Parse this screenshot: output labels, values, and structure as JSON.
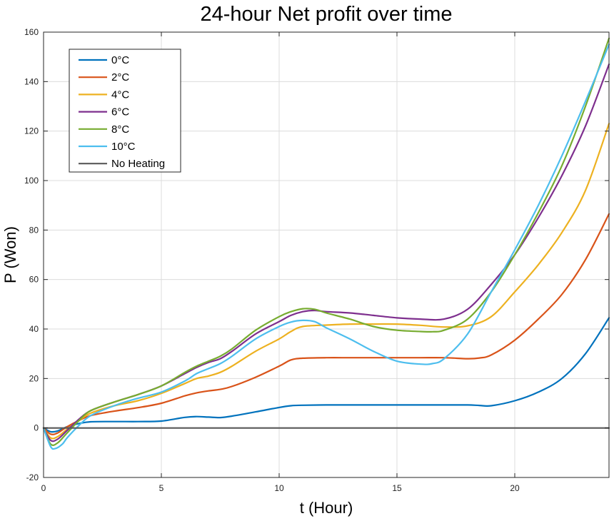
{
  "chart_data": {
    "type": "line",
    "title": "24-hour Net profit over time",
    "xlabel": "t (Hour)",
    "ylabel": "P (Won)",
    "xlim": [
      0,
      24
    ],
    "ylim": [
      -20,
      160
    ],
    "xticks": [
      0,
      5,
      10,
      15,
      20
    ],
    "yticks": [
      -20,
      0,
      20,
      40,
      60,
      80,
      100,
      120,
      140,
      160
    ],
    "grid": true,
    "legend_position": "top-left",
    "series": [
      {
        "name": "0°C",
        "color": "#0072BD",
        "x": [
          0,
          0.3,
          0.6,
          1,
          1.5,
          2,
          3,
          4,
          5,
          6,
          6.5,
          7,
          7.5,
          8,
          9,
          10,
          10.5,
          11,
          12,
          13,
          14,
          15,
          16,
          17,
          18,
          18.5,
          19,
          20,
          21,
          22,
          23,
          24
        ],
        "y": [
          0,
          -1.5,
          -1.2,
          0.5,
          1.8,
          2.5,
          2.6,
          2.6,
          2.8,
          4.3,
          4.6,
          4.4,
          4.2,
          4.8,
          6.5,
          8.3,
          9.0,
          9.2,
          9.3,
          9.3,
          9.3,
          9.3,
          9.3,
          9.3,
          9.3,
          9.1,
          9.0,
          11.0,
          14.5,
          20.0,
          30.0,
          44.5
        ]
      },
      {
        "name": "2°C",
        "color": "#D95319",
        "x": [
          0,
          0.3,
          0.6,
          1,
          1.5,
          2,
          3,
          4,
          5,
          6,
          6.5,
          7,
          7.5,
          8,
          9,
          10,
          10.5,
          11,
          12,
          13,
          14,
          15,
          16,
          17,
          18,
          18.5,
          19,
          20,
          21,
          22,
          23,
          24
        ],
        "y": [
          0,
          -2.5,
          -2.0,
          0.5,
          3.0,
          5.0,
          6.8,
          8.2,
          10.0,
          13.0,
          14.2,
          15.0,
          15.6,
          16.8,
          20.5,
          25.0,
          27.5,
          28.2,
          28.4,
          28.4,
          28.4,
          28.4,
          28.4,
          28.4,
          28.0,
          28.3,
          29.5,
          35.5,
          44.0,
          54.0,
          68.0,
          86.5
        ]
      },
      {
        "name": "4°C",
        "color": "#EDB120",
        "x": [
          0,
          0.3,
          0.6,
          1,
          1.5,
          2,
          3,
          4,
          5,
          6,
          6.5,
          7,
          7.5,
          8,
          9,
          10,
          10.5,
          11,
          12,
          13,
          14,
          15,
          16,
          17,
          18,
          19,
          20,
          21,
          22,
          23,
          24
        ],
        "y": [
          0,
          -4.0,
          -3.5,
          -0.5,
          3.0,
          6.0,
          9.0,
          11.0,
          14.0,
          18.0,
          20.0,
          21.0,
          22.5,
          25.0,
          31.0,
          36.0,
          39.0,
          41.0,
          41.6,
          42.0,
          42.0,
          42.0,
          41.5,
          40.8,
          41.3,
          45.0,
          55.0,
          66.0,
          79.0,
          96.0,
          123.0
        ]
      },
      {
        "name": "6°C",
        "color": "#7E2F8E",
        "x": [
          0,
          0.3,
          0.6,
          1,
          1.5,
          2,
          3,
          4,
          5,
          6,
          6.5,
          7,
          7.5,
          8,
          9,
          10,
          10.5,
          11,
          11.5,
          12,
          13,
          14,
          15,
          16,
          17,
          18,
          19,
          20,
          21,
          22,
          23,
          24
        ],
        "y": [
          0,
          -5.0,
          -4.5,
          -1.0,
          3.5,
          7.0,
          10.5,
          13.5,
          17.0,
          22.0,
          24.5,
          26.5,
          28.0,
          31.0,
          38.0,
          43.0,
          45.5,
          47.0,
          47.5,
          47.0,
          46.5,
          45.5,
          44.5,
          44.0,
          44.0,
          48.0,
          58.0,
          70.0,
          85.0,
          102.0,
          122.0,
          147.0
        ]
      },
      {
        "name": "8°C",
        "color": "#77AC30",
        "x": [
          0,
          0.3,
          0.6,
          1,
          1.5,
          2,
          3,
          4,
          5,
          6,
          6.5,
          7,
          7.5,
          8,
          9,
          10,
          10.5,
          11,
          11.5,
          12,
          13,
          14,
          15,
          16,
          16.5,
          17,
          18,
          19,
          20,
          21,
          22,
          23,
          24
        ],
        "y": [
          0,
          -6.5,
          -6.0,
          -2.0,
          3.0,
          7.0,
          10.5,
          13.5,
          17.0,
          22.5,
          25.0,
          27.0,
          29.0,
          32.0,
          39.5,
          45.0,
          47.0,
          48.2,
          48.0,
          46.5,
          44.0,
          41.0,
          39.5,
          39.0,
          38.9,
          39.5,
          44.0,
          55.0,
          70.0,
          87.0,
          106.0,
          130.0,
          157.5
        ]
      },
      {
        "name": "10°C",
        "color": "#4DBEEE",
        "x": [
          0,
          0.3,
          0.5,
          0.8,
          1,
          1.5,
          2,
          3,
          4,
          5,
          6,
          6.5,
          7,
          7.5,
          8,
          9,
          10,
          10.5,
          11,
          11.5,
          12,
          13,
          14,
          15,
          16,
          16.5,
          17,
          18,
          19,
          20,
          21,
          22,
          23,
          24
        ],
        "y": [
          0,
          -7.5,
          -8.3,
          -6.5,
          -4.0,
          1.0,
          5.0,
          9.0,
          12.0,
          14.5,
          19.0,
          22.0,
          24.0,
          26.0,
          29.0,
          36.0,
          41.0,
          42.8,
          43.5,
          43.0,
          40.5,
          36.0,
          31.0,
          27.0,
          25.8,
          26.0,
          28.0,
          38.0,
          55.0,
          72.0,
          90.0,
          110.0,
          132.0,
          155.0
        ]
      },
      {
        "name": "No Heating",
        "color": "#595959",
        "x": [
          0,
          24
        ],
        "y": [
          0,
          0
        ]
      }
    ]
  }
}
